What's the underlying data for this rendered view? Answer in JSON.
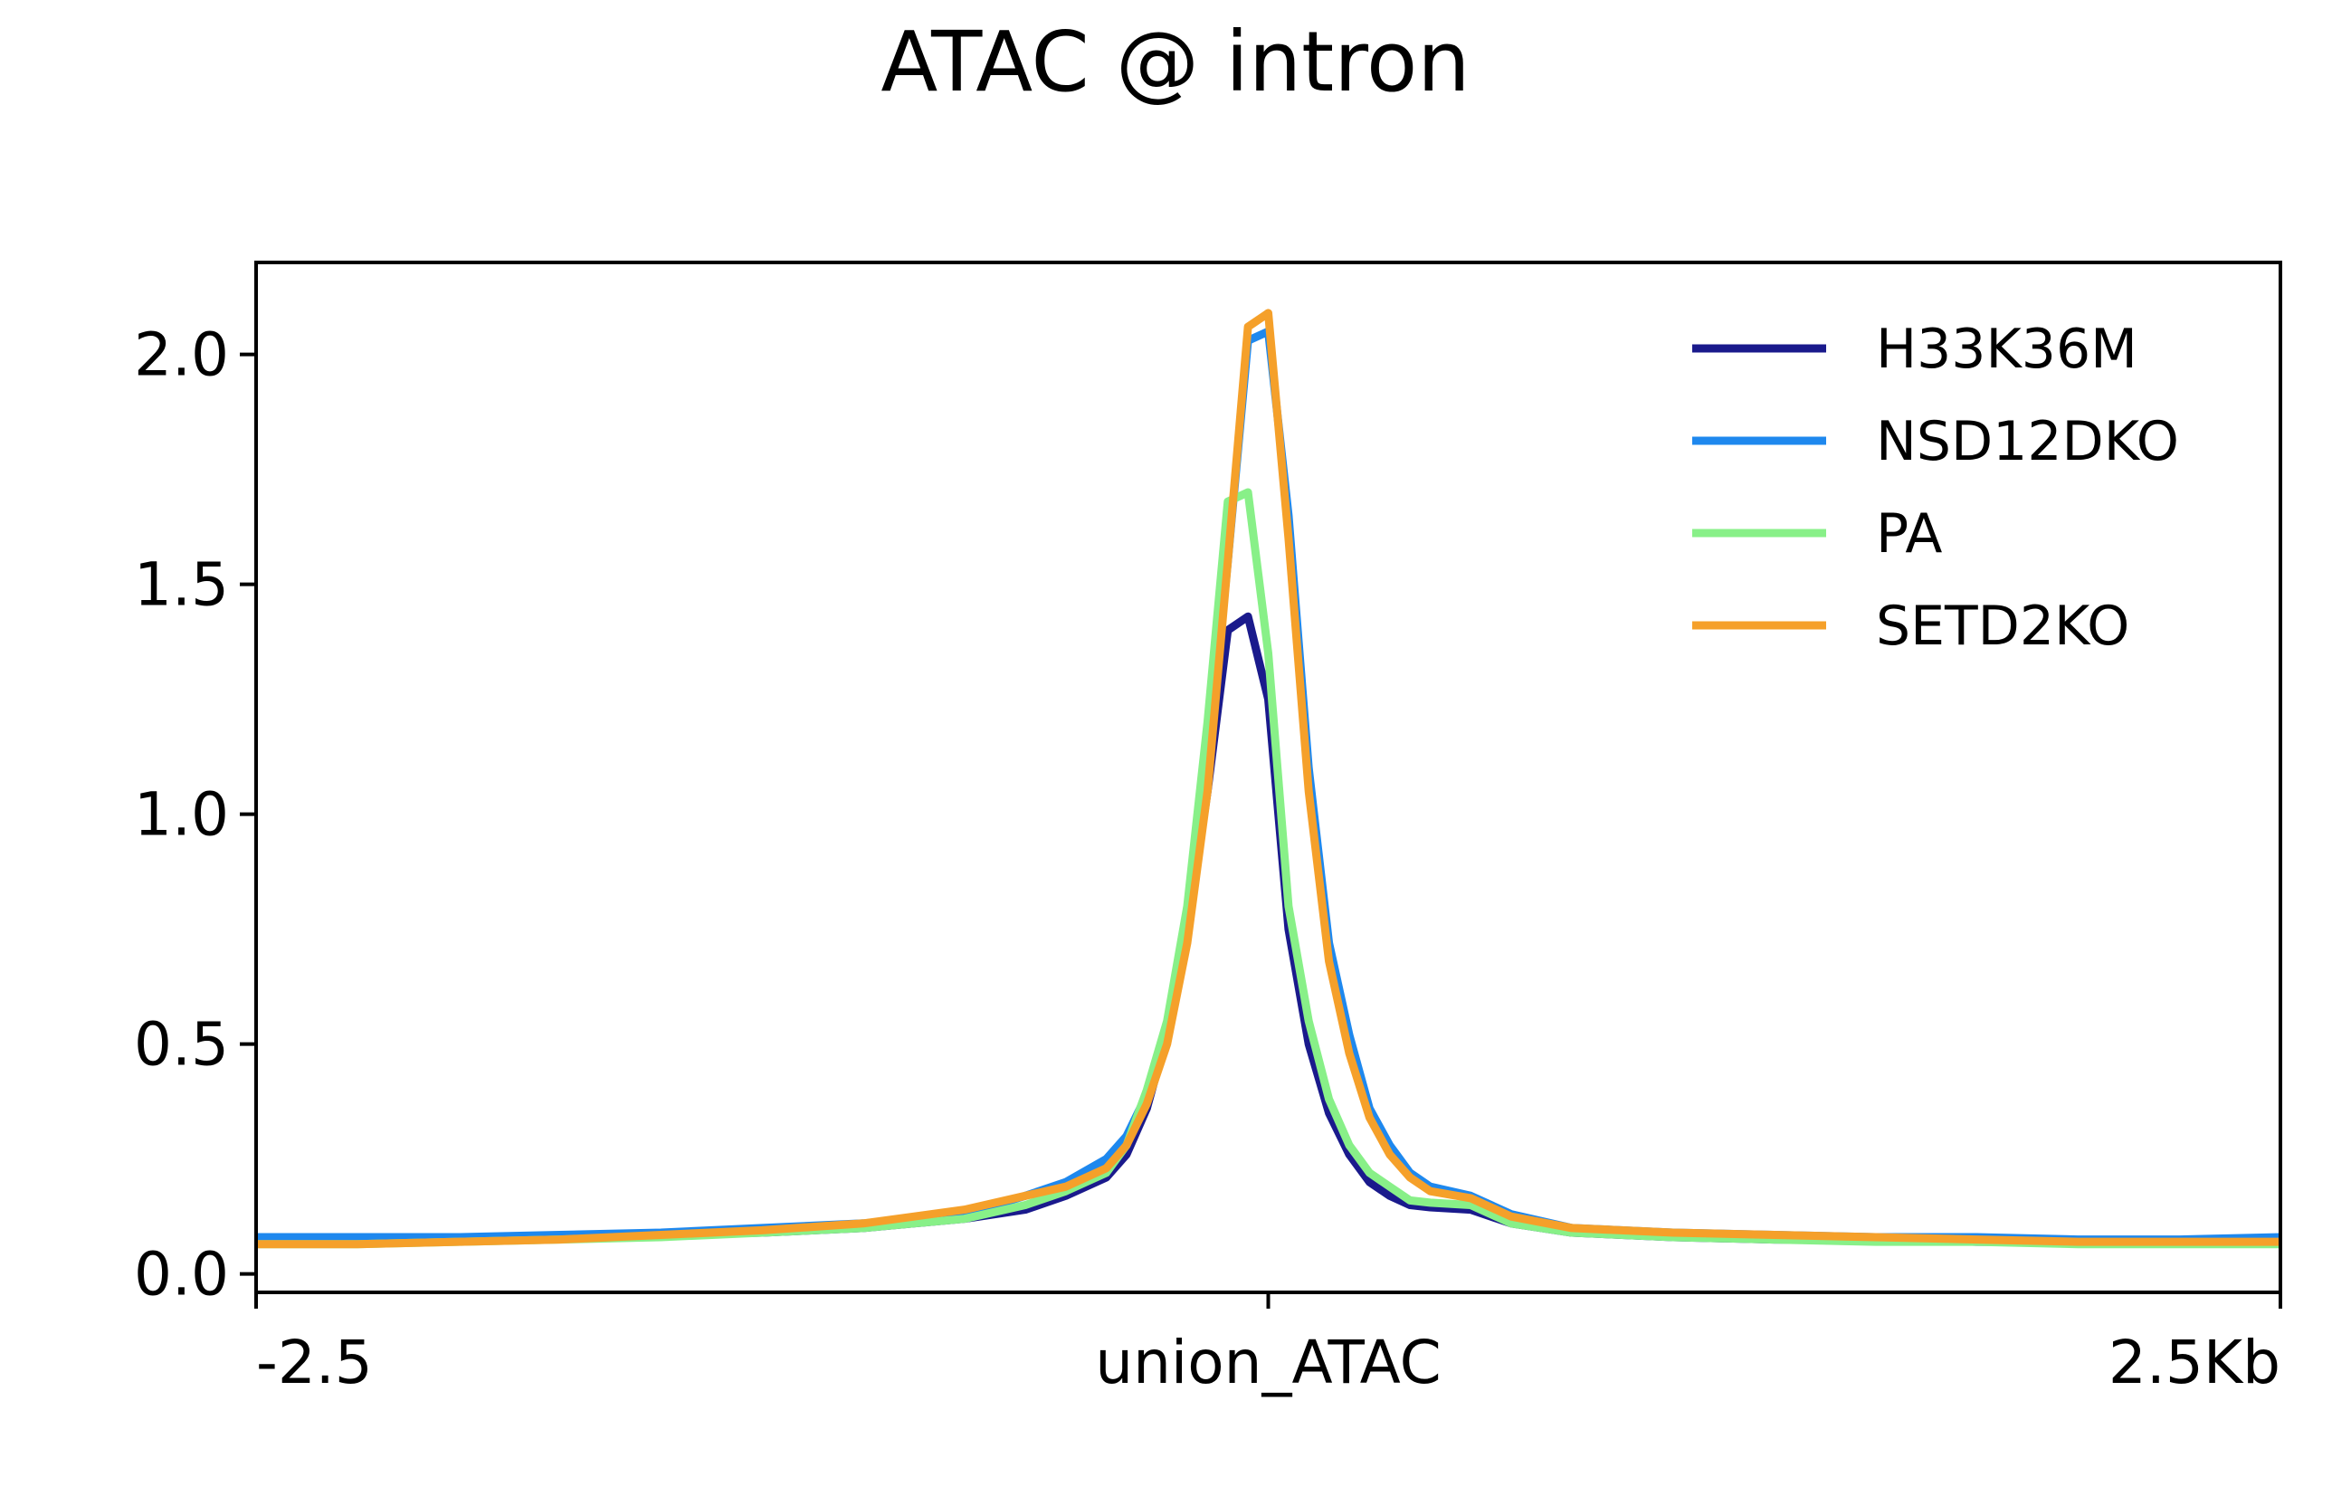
{
  "chart_data": {
    "type": "line",
    "title": "ATAC @ intron",
    "xlabel": "",
    "ylabel": "",
    "x_tick_labels": [
      "-2.5",
      "union_ATAC",
      "2.5Kb"
    ],
    "x_tick_positions": [
      -2.5,
      0,
      2.5
    ],
    "xlim": [
      -2.5,
      2.5
    ],
    "ylim": [
      -0.04,
      2.2
    ],
    "y_ticks": [
      0.0,
      0.5,
      1.0,
      1.5,
      2.0
    ],
    "y_tick_labels": [
      "0.0",
      "0.5",
      "1.0",
      "1.5",
      "2.0"
    ],
    "grid": false,
    "legend_position": "top-right",
    "x": [
      -2.5,
      -2.25,
      -2.0,
      -1.75,
      -1.5,
      -1.25,
      -1.0,
      -0.75,
      -0.6,
      -0.5,
      -0.4,
      -0.35,
      -0.3,
      -0.25,
      -0.2,
      -0.15,
      -0.1,
      -0.05,
      0.0,
      0.05,
      0.1,
      0.15,
      0.2,
      0.25,
      0.3,
      0.35,
      0.4,
      0.5,
      0.6,
      0.75,
      1.0,
      1.25,
      1.5,
      1.75,
      2.0,
      2.25,
      2.5
    ],
    "series": [
      {
        "name": "H33K36M",
        "color": "#1a1a8c",
        "values": [
          0.07,
          0.07,
          0.075,
          0.08,
          0.085,
          0.09,
          0.1,
          0.12,
          0.14,
          0.17,
          0.21,
          0.26,
          0.36,
          0.52,
          0.75,
          1.05,
          1.4,
          1.43,
          1.25,
          0.75,
          0.5,
          0.35,
          0.26,
          0.2,
          0.17,
          0.15,
          0.145,
          0.14,
          0.11,
          0.09,
          0.08,
          0.075,
          0.075,
          0.07,
          0.07,
          0.07,
          0.07
        ]
      },
      {
        "name": "NSD12DKO",
        "color": "#1e88ee",
        "values": [
          0.08,
          0.08,
          0.08,
          0.085,
          0.09,
          0.1,
          0.11,
          0.13,
          0.17,
          0.2,
          0.25,
          0.3,
          0.39,
          0.52,
          0.75,
          1.1,
          1.55,
          2.03,
          2.05,
          1.65,
          1.1,
          0.72,
          0.52,
          0.36,
          0.28,
          0.22,
          0.19,
          0.17,
          0.13,
          0.1,
          0.09,
          0.085,
          0.08,
          0.08,
          0.075,
          0.075,
          0.08
        ]
      },
      {
        "name": "PA",
        "color": "#88f088",
        "values": [
          0.065,
          0.065,
          0.07,
          0.075,
          0.08,
          0.09,
          0.1,
          0.12,
          0.15,
          0.18,
          0.22,
          0.28,
          0.4,
          0.55,
          0.8,
          1.2,
          1.68,
          1.7,
          1.35,
          0.8,
          0.55,
          0.38,
          0.28,
          0.22,
          0.19,
          0.16,
          0.155,
          0.15,
          0.11,
          0.09,
          0.08,
          0.075,
          0.07,
          0.07,
          0.065,
          0.065,
          0.065
        ]
      },
      {
        "name": "SETD2KO",
        "color": "#f5a02a",
        "values": [
          0.065,
          0.065,
          0.07,
          0.075,
          0.085,
          0.095,
          0.11,
          0.14,
          0.17,
          0.19,
          0.23,
          0.28,
          0.37,
          0.5,
          0.72,
          1.05,
          1.55,
          2.06,
          2.09,
          1.6,
          1.05,
          0.68,
          0.48,
          0.34,
          0.26,
          0.21,
          0.18,
          0.165,
          0.125,
          0.1,
          0.09,
          0.085,
          0.08,
          0.075,
          0.07,
          0.07,
          0.07
        ]
      }
    ]
  }
}
